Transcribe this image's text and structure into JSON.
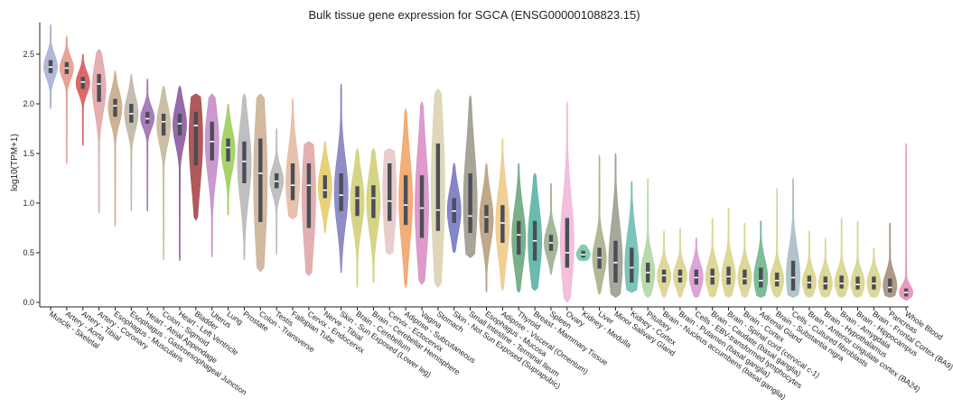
{
  "chart_data": {
    "type": "violin",
    "title": "Bulk tissue gene expression for SGCA (ENSG00000108823.15)",
    "xlabel": "",
    "ylabel": "log10(TPM+1)",
    "ylim": [
      0,
      2.8
    ],
    "yticks": [
      0.0,
      0.5,
      1.0,
      1.5,
      2.0,
      2.5
    ],
    "ytick_labels": [
      "0.0",
      "0.5",
      "1.0",
      "1.5",
      "2.0",
      "2.5"
    ],
    "grid": false,
    "legend": "none",
    "series": [
      {
        "name": "Muscle - Skeletal",
        "min": 1.95,
        "q1": 2.31,
        "median": 2.37,
        "q3": 2.44,
        "max": 2.8,
        "color": "#aab0d2"
      },
      {
        "name": "Artery - Aorta",
        "min": 1.4,
        "q1": 2.3,
        "median": 2.36,
        "q3": 2.42,
        "max": 2.68,
        "color": "#e49a8a"
      },
      {
        "name": "Artery - Tibial",
        "min": 1.58,
        "q1": 2.15,
        "median": 2.22,
        "q3": 2.27,
        "max": 2.5,
        "color": "#d8595a"
      },
      {
        "name": "Artery - Coronary",
        "min": 0.9,
        "q1": 2.02,
        "median": 2.2,
        "q3": 2.3,
        "max": 2.55,
        "color": "#e2a6a6"
      },
      {
        "name": "Esophagus - Muscularis",
        "min": 0.77,
        "q1": 1.87,
        "median": 1.98,
        "q3": 2.05,
        "max": 2.33,
        "color": "#c7ab8a"
      },
      {
        "name": "Esophagus - Gastroesophageal Junction",
        "min": 0.92,
        "q1": 1.81,
        "median": 1.9,
        "q3": 2.0,
        "max": 2.3,
        "color": "#bfb7a5"
      },
      {
        "name": "Heart - Atrial Appendage",
        "min": 0.92,
        "q1": 1.8,
        "median": 1.85,
        "q3": 1.92,
        "max": 2.25,
        "color": "#9d6fb2"
      },
      {
        "name": "Colon - Sigmoid",
        "min": 0.43,
        "q1": 1.68,
        "median": 1.82,
        "q3": 1.9,
        "max": 2.18,
        "color": "#c5b89b"
      },
      {
        "name": "Heart - Left Ventricle",
        "min": 0.42,
        "q1": 1.68,
        "median": 1.8,
        "q3": 1.9,
        "max": 2.18,
        "color": "#8b5aa2"
      },
      {
        "name": "Bladder",
        "min": 0.83,
        "q1": 1.38,
        "median": 1.78,
        "q3": 1.92,
        "max": 2.1,
        "color": "#a9484a"
      },
      {
        "name": "Uterus",
        "min": 0.46,
        "q1": 1.43,
        "median": 1.62,
        "q3": 1.82,
        "max": 2.1,
        "color": "#c58ec8"
      },
      {
        "name": "Lung",
        "min": 0.88,
        "q1": 1.42,
        "median": 1.56,
        "q3": 1.65,
        "max": 2.0,
        "color": "#9fce5b"
      },
      {
        "name": "Prostate",
        "min": 0.43,
        "q1": 1.2,
        "median": 1.42,
        "q3": 1.62,
        "max": 2.1,
        "color": "#b8b8b8"
      },
      {
        "name": "Colon - Transverse",
        "min": 0.31,
        "q1": 0.81,
        "median": 1.3,
        "q3": 1.65,
        "max": 2.1,
        "color": "#ccb397"
      },
      {
        "name": "Testis",
        "min": 0.48,
        "q1": 1.15,
        "median": 1.22,
        "q3": 1.3,
        "max": 1.75,
        "color": "#b9b9b9"
      },
      {
        "name": "Fallopian Tube",
        "min": 0.84,
        "q1": 1.03,
        "median": 1.18,
        "q3": 1.4,
        "max": 2.05,
        "color": "#e4bba5"
      },
      {
        "name": "Cervix - Endocervix",
        "min": 0.27,
        "q1": 0.75,
        "median": 1.18,
        "q3": 1.4,
        "max": 1.62,
        "color": "#e0a7a7"
      },
      {
        "name": "Nerve - Tibial",
        "min": 0.7,
        "q1": 1.05,
        "median": 1.13,
        "q3": 1.28,
        "max": 1.62,
        "color": "#e8cb6c"
      },
      {
        "name": "Skin - Sun Exposed (Lower leg)",
        "min": 0.3,
        "q1": 0.92,
        "median": 1.08,
        "q3": 1.3,
        "max": 2.2,
        "color": "#8481c0"
      },
      {
        "name": "Brain - Cerebellum",
        "min": 0.15,
        "q1": 0.87,
        "median": 1.05,
        "q3": 1.17,
        "max": 1.55,
        "color": "#d2d07a"
      },
      {
        "name": "Brain - Cerebellar Hemisphere",
        "min": 0.2,
        "q1": 0.85,
        "median": 1.05,
        "q3": 1.18,
        "max": 1.55,
        "color": "#d2d07a"
      },
      {
        "name": "Cervix - Ectocervix",
        "min": 0.48,
        "q1": 0.82,
        "median": 1.02,
        "q3": 1.4,
        "max": 1.55,
        "color": "#e7c8c7"
      },
      {
        "name": "Adipose - Subcutaneous",
        "min": 0.15,
        "q1": 0.78,
        "median": 0.98,
        "q3": 1.28,
        "max": 1.95,
        "color": "#f2a46a"
      },
      {
        "name": "Vagina",
        "min": 0.18,
        "q1": 0.65,
        "median": 0.95,
        "q3": 1.28,
        "max": 2.02,
        "color": "#da8fc6"
      },
      {
        "name": "Stomach",
        "min": 0.15,
        "q1": 0.72,
        "median": 0.93,
        "q3": 1.6,
        "max": 2.15,
        "color": "#dcd3b2"
      },
      {
        "name": "Skin - Not Sun Exposed (Suprapubic)",
        "min": 0.5,
        "q1": 0.8,
        "median": 0.92,
        "q3": 1.05,
        "max": 1.4,
        "color": "#7779c2"
      },
      {
        "name": "Small Intestine - Terminal Ileum",
        "min": 0.45,
        "q1": 0.7,
        "median": 0.87,
        "q3": 1.3,
        "max": 2.08,
        "color": "#9e9a8c"
      },
      {
        "name": "Esophagus - Mucosa",
        "min": 0.1,
        "q1": 0.7,
        "median": 0.86,
        "q3": 0.98,
        "max": 1.4,
        "color": "#b99e7b"
      },
      {
        "name": "Adipose - Visceral (Omentum)",
        "min": 0.12,
        "q1": 0.6,
        "median": 0.8,
        "q3": 0.98,
        "max": 1.65,
        "color": "#eecb8a"
      },
      {
        "name": "Thyroid",
        "min": 0.1,
        "q1": 0.48,
        "median": 0.68,
        "q3": 0.82,
        "max": 1.4,
        "color": "#6aa97c"
      },
      {
        "name": "Breast - Mammary Tissue",
        "min": 0.12,
        "q1": 0.42,
        "median": 0.62,
        "q3": 0.82,
        "max": 1.3,
        "color": "#5ab4a5"
      },
      {
        "name": "Spleen",
        "min": 0.28,
        "q1": 0.52,
        "median": 0.6,
        "q3": 0.68,
        "max": 1.2,
        "color": "#9bb08f"
      },
      {
        "name": "Ovary",
        "min": 0.0,
        "q1": 0.35,
        "median": 0.5,
        "q3": 0.85,
        "max": 2.02,
        "color": "#f2b8d6"
      },
      {
        "name": "Kidney - Medulla",
        "min": 0.42,
        "q1": 0.45,
        "median": 0.48,
        "q3": 0.52,
        "max": 0.58,
        "color": "#73c9a4"
      },
      {
        "name": "Liver",
        "min": 0.08,
        "q1": 0.34,
        "median": 0.45,
        "q3": 0.55,
        "max": 1.48,
        "color": "#a9b089"
      },
      {
        "name": "Minor Salivary Gland",
        "min": 0.05,
        "q1": 0.2,
        "median": 0.4,
        "q3": 0.62,
        "max": 1.5,
        "color": "#9b9f8f"
      },
      {
        "name": "Kidney - Cortex",
        "min": 0.1,
        "q1": 0.2,
        "median": 0.35,
        "q3": 0.55,
        "max": 1.22,
        "color": "#70bdb2"
      },
      {
        "name": "Pituitary",
        "min": 0.05,
        "q1": 0.2,
        "median": 0.3,
        "q3": 0.4,
        "max": 1.25,
        "color": "#b3d6a3"
      },
      {
        "name": "Brain - Nucleus accumbens (basal ganglia)",
        "min": 0.05,
        "q1": 0.2,
        "median": 0.27,
        "q3": 0.33,
        "max": 0.72,
        "color": "#d8d48c"
      },
      {
        "name": "Brain - Putamen (basal ganglia)",
        "min": 0.05,
        "q1": 0.2,
        "median": 0.26,
        "q3": 0.33,
        "max": 0.75,
        "color": "#d8d48c"
      },
      {
        "name": "Cells - EBV-transformed lymphocytes",
        "min": 0.05,
        "q1": 0.18,
        "median": 0.25,
        "q3": 0.33,
        "max": 0.65,
        "color": "#d89ad4"
      },
      {
        "name": "Brain - Caudate (basal ganglia)",
        "min": 0.05,
        "q1": 0.18,
        "median": 0.26,
        "q3": 0.34,
        "max": 0.85,
        "color": "#d8d48c"
      },
      {
        "name": "Brain - Spinal cord (cervical c-1)",
        "min": 0.05,
        "q1": 0.18,
        "median": 0.26,
        "q3": 0.36,
        "max": 0.95,
        "color": "#d8d48c"
      },
      {
        "name": "Brain - Cortex",
        "min": 0.05,
        "q1": 0.18,
        "median": 0.24,
        "q3": 0.33,
        "max": 0.8,
        "color": "#d8d48c"
      },
      {
        "name": "Adrenal Gland",
        "min": 0.05,
        "q1": 0.15,
        "median": 0.22,
        "q3": 0.35,
        "max": 0.82,
        "color": "#6fb68d"
      },
      {
        "name": "Brain - Substantia nigra",
        "min": 0.05,
        "q1": 0.16,
        "median": 0.22,
        "q3": 0.3,
        "max": 1.15,
        "color": "#d8d48c"
      },
      {
        "name": "Cells - Cultured fibroblasts",
        "min": 0.05,
        "q1": 0.12,
        "median": 0.25,
        "q3": 0.42,
        "max": 1.25,
        "color": "#a8bec6"
      },
      {
        "name": "Brain - Anterior cingulate cortex (BA24)",
        "min": 0.05,
        "q1": 0.14,
        "median": 0.2,
        "q3": 0.27,
        "max": 0.72,
        "color": "#d8d48c"
      },
      {
        "name": "Brain - Hypothalamus",
        "min": 0.05,
        "q1": 0.13,
        "median": 0.19,
        "q3": 0.26,
        "max": 0.65,
        "color": "#d8d48c"
      },
      {
        "name": "Brain - Amygdala",
        "min": 0.05,
        "q1": 0.14,
        "median": 0.19,
        "q3": 0.27,
        "max": 0.85,
        "color": "#d8d48c"
      },
      {
        "name": "Brain - Hippocampus",
        "min": 0.05,
        "q1": 0.13,
        "median": 0.18,
        "q3": 0.26,
        "max": 0.82,
        "color": "#d8d48c"
      },
      {
        "name": "Brain - Frontal Cortex (BA9)",
        "min": 0.05,
        "q1": 0.13,
        "median": 0.19,
        "q3": 0.26,
        "max": 0.55,
        "color": "#d8d48c"
      },
      {
        "name": "Pancreas",
        "min": 0.05,
        "q1": 0.1,
        "median": 0.15,
        "q3": 0.24,
        "max": 0.8,
        "color": "#a68f7a"
      },
      {
        "name": "Whole Blood",
        "min": 0.02,
        "q1": 0.06,
        "median": 0.1,
        "q3": 0.14,
        "max": 1.6,
        "color": "#e58fb8"
      }
    ]
  }
}
